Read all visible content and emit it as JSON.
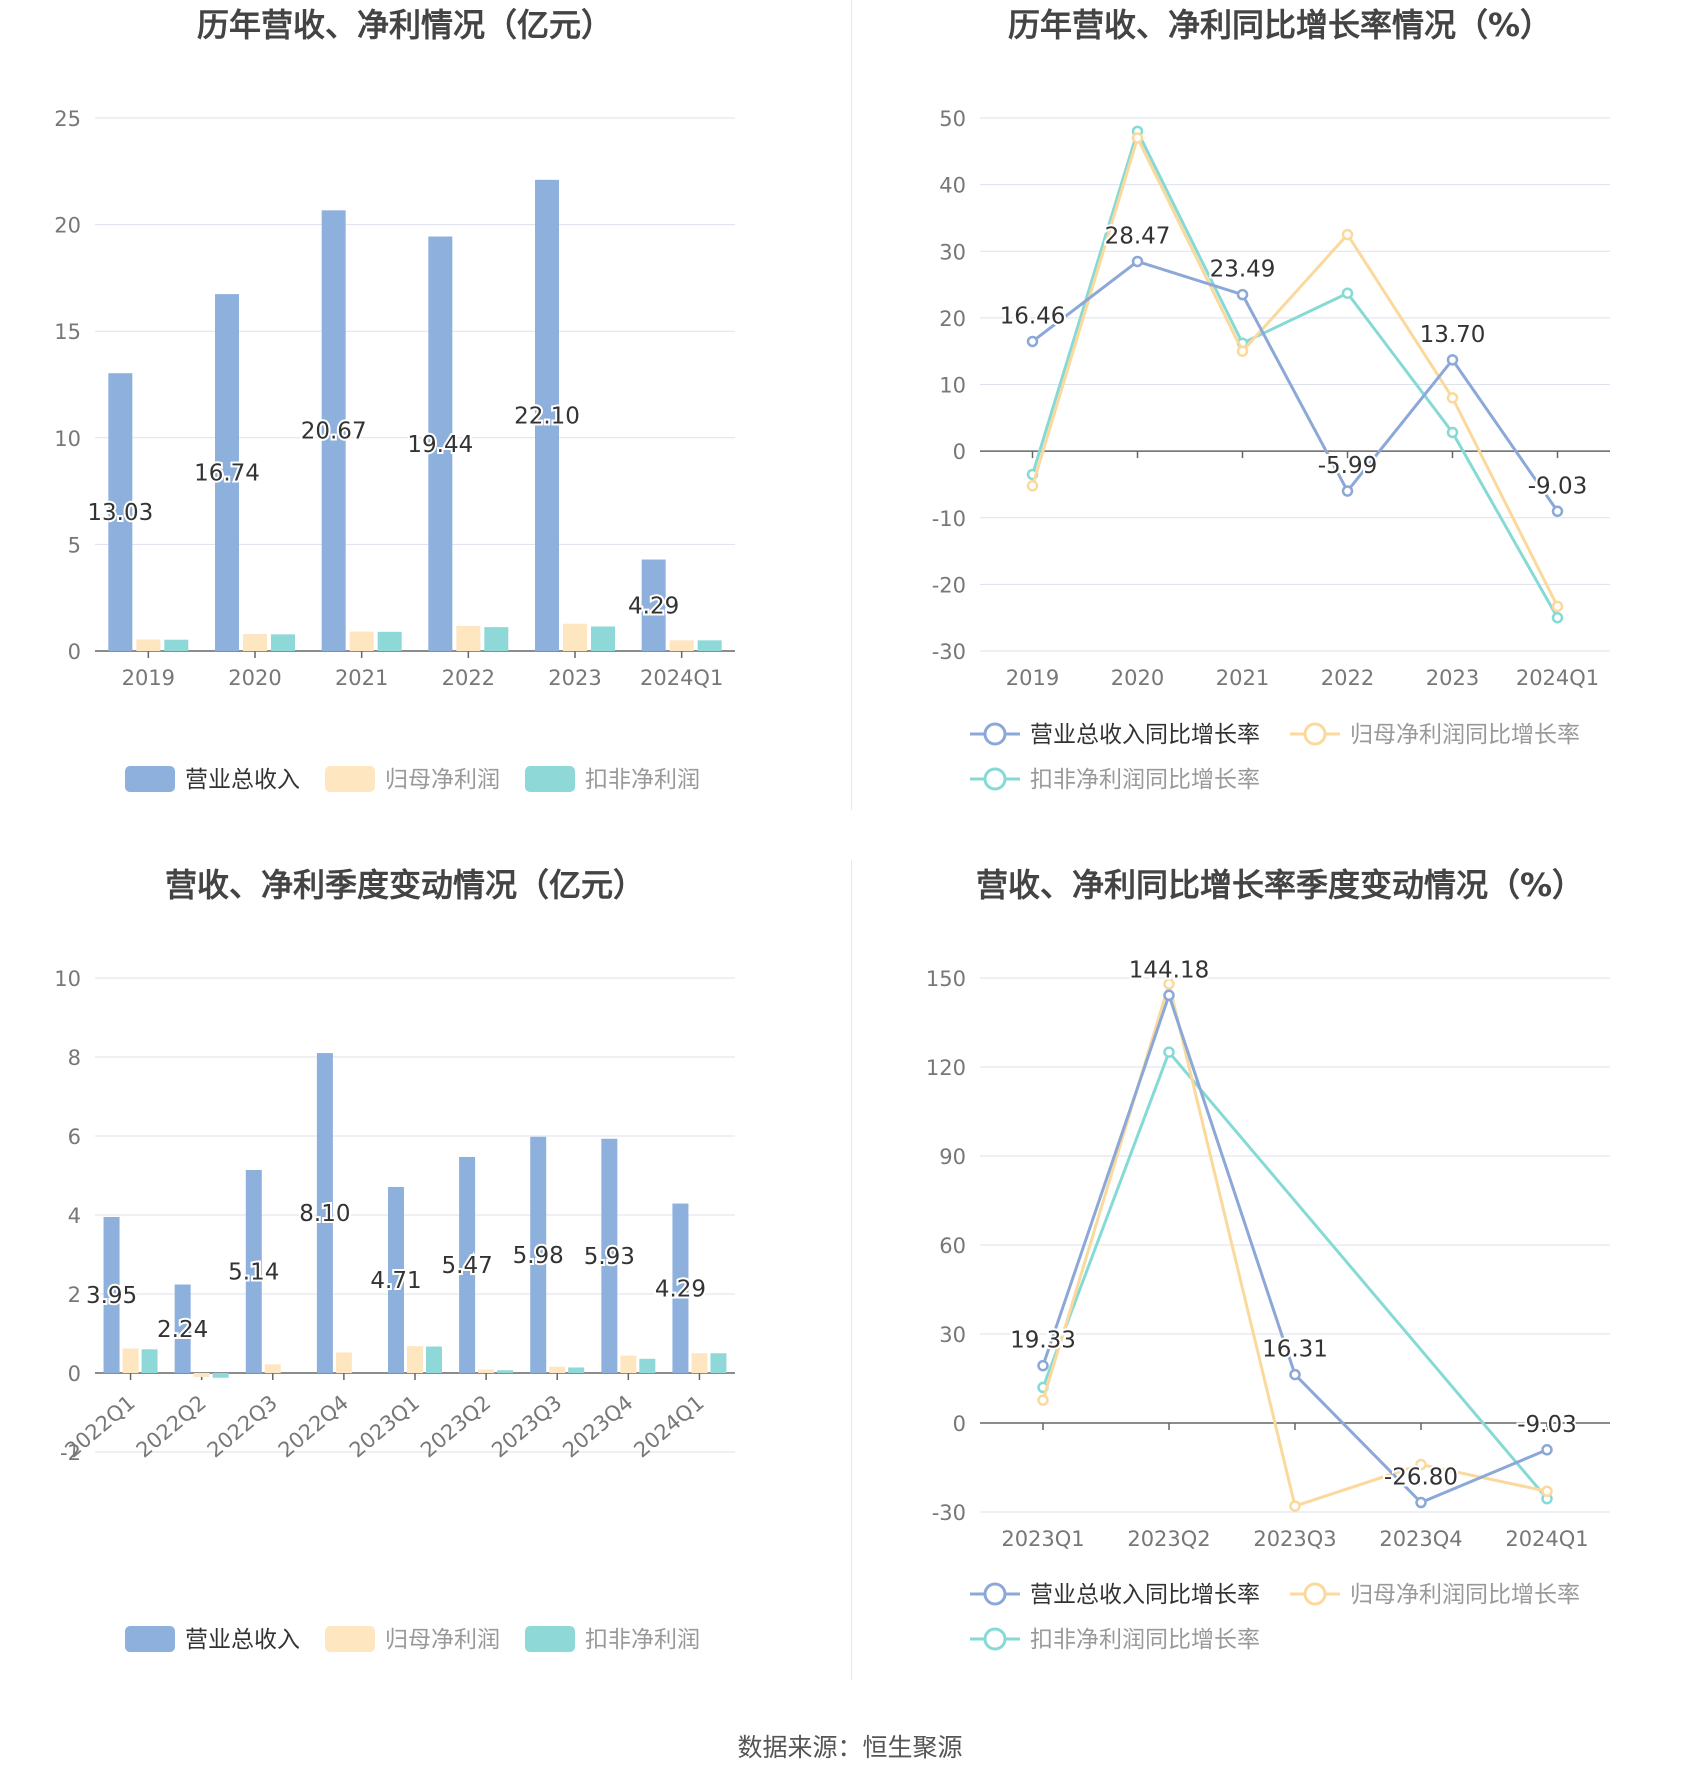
{
  "source": "数据来源：恒生聚源",
  "colors": {
    "revenue": "#8eb0dc",
    "net_profit": "#fde6c0",
    "deducted_profit": "#8fd8d8",
    "line_revenue": "#8ba8d8",
    "line_net": "#fbd99c",
    "line_deducted": "#86dad6"
  },
  "chart_data": [
    {
      "type": "bar",
      "title": "历年营收、净利情况（亿元）",
      "categories": [
        "2019",
        "2020",
        "2021",
        "2022",
        "2023",
        "2024Q1"
      ],
      "ylim": [
        0,
        25
      ],
      "yticks": [
        "0",
        "5",
        "10",
        "15",
        "20",
        "25"
      ],
      "series": [
        {
          "name": "营业总收入",
          "values": [
            13.03,
            16.74,
            20.67,
            19.44,
            22.1,
            4.29
          ],
          "labels": [
            "13.03",
            "16.74",
            "20.67",
            "19.44",
            "22.10",
            "4.29"
          ]
        },
        {
          "name": "归母净利润",
          "values": [
            0.54,
            0.8,
            0.91,
            1.18,
            1.28,
            0.5
          ]
        },
        {
          "name": "扣非净利润",
          "values": [
            0.53,
            0.78,
            0.9,
            1.12,
            1.15,
            0.5
          ]
        }
      ],
      "legend": "bottom",
      "grid": true
    },
    {
      "type": "line",
      "title": "历年营收、净利同比增长率情况（%）",
      "categories": [
        "2019",
        "2020",
        "2021",
        "2022",
        "2023",
        "2024Q1"
      ],
      "ylim": [
        -30,
        50
      ],
      "yticks": [
        "-30",
        "-20",
        "-10",
        "0",
        "10",
        "20",
        "30",
        "40",
        "50"
      ],
      "series": [
        {
          "name": "营业总收入同比增长率",
          "values": [
            16.46,
            28.47,
            23.49,
            -5.99,
            13.7,
            -9.03
          ],
          "labels": [
            "16.46",
            "28.47",
            "23.49",
            "-5.99",
            "13.70",
            "-9.03"
          ]
        },
        {
          "name": "归母净利润同比增长率",
          "values": [
            -5.2,
            47.0,
            15.0,
            32.5,
            8.0,
            -23.3
          ]
        },
        {
          "name": "扣非净利润同比增长率",
          "values": [
            -3.5,
            48.0,
            16.2,
            23.7,
            2.8,
            -25.0
          ]
        }
      ],
      "legend": "bottom",
      "grid": true
    },
    {
      "type": "bar",
      "title": "营收、净利季度变动情况（亿元）",
      "categories": [
        "2022Q1",
        "2022Q2",
        "2022Q3",
        "2022Q4",
        "2023Q1",
        "2023Q2",
        "2023Q3",
        "2023Q4",
        "2024Q1"
      ],
      "ylim": [
        -2,
        10
      ],
      "yticks": [
        "-2",
        "0",
        "2",
        "4",
        "6",
        "8",
        "10"
      ],
      "series": [
        {
          "name": "营业总收入",
          "values": [
            3.95,
            2.24,
            5.14,
            8.1,
            4.71,
            5.47,
            5.98,
            5.93,
            4.29
          ],
          "labels": [
            "3.95",
            "2.24",
            "5.14",
            "8.10",
            "4.71",
            "5.47",
            "5.98",
            "5.93",
            "4.29"
          ]
        },
        {
          "name": "归母净利润",
          "values": [
            0.62,
            -0.1,
            0.22,
            0.52,
            0.68,
            0.09,
            0.16,
            0.44,
            0.5
          ]
        },
        {
          "name": "扣非净利润",
          "values": [
            0.6,
            -0.12,
            0.0,
            0.0,
            0.67,
            0.07,
            0.14,
            0.36,
            0.5
          ]
        }
      ],
      "legend": "bottom",
      "grid": true
    },
    {
      "type": "line",
      "title": "营收、净利同比增长率季度变动情况（%）",
      "categories": [
        "2023Q1",
        "2023Q2",
        "2023Q3",
        "2023Q4",
        "2024Q1"
      ],
      "ylim": [
        -30,
        150
      ],
      "yticks": [
        "-30",
        "0",
        "30",
        "60",
        "90",
        "120",
        "150"
      ],
      "series": [
        {
          "name": "营业总收入同比增长率",
          "values": [
            19.33,
            144.18,
            16.31,
            -26.8,
            -9.03
          ],
          "labels": [
            "19.33",
            "144.18",
            "16.31",
            "-26.80",
            "-9.03"
          ]
        },
        {
          "name": "归母净利润同比增长率",
          "values": [
            7.7,
            148.0,
            -28.0,
            -14.0,
            -23.0
          ]
        },
        {
          "name": "扣非净利润同比增长率",
          "values": [
            12.0,
            125.0,
            null,
            null,
            -25.5
          ]
        }
      ],
      "legend": "bottom",
      "grid": true
    }
  ]
}
